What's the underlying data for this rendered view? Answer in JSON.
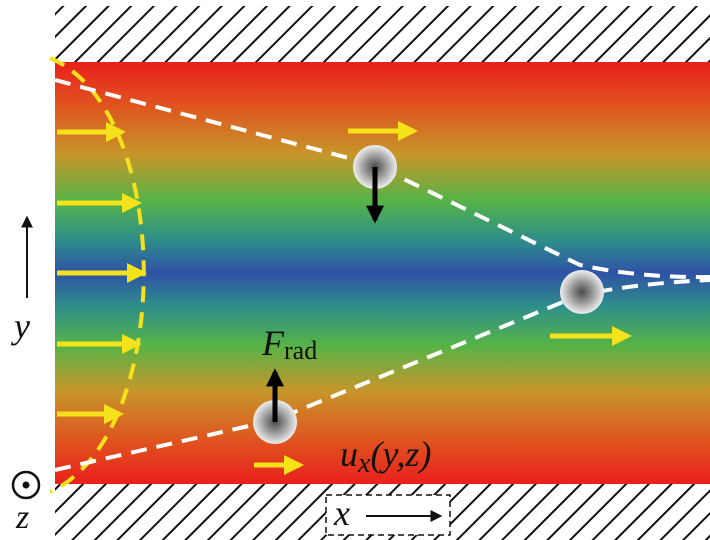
{
  "diagram": {
    "labels": {
      "force_symbol": "F",
      "force_subscript": "rad",
      "velocity_symbol": "u",
      "velocity_subscript": "x",
      "velocity_args": "(y,z)",
      "axis_x": "x",
      "axis_y": "y",
      "axis_z": "z"
    },
    "colors": {
      "gradient_edge": "#e8201c",
      "gradient_mid1": "#d98a25",
      "gradient_mid2": "#45b24a",
      "gradient_center": "#2f52a6",
      "flow_arrows": "#f5e21a",
      "profile_curve": "#f5e21a",
      "trajectories": "#ffffff",
      "force_arrows": "#000000",
      "wall_hatch": "#111111"
    },
    "icons": {
      "wall": "hatched-wall",
      "particle": "shaded-sphere",
      "z_axis": "out-of-page-dot-circle"
    }
  }
}
